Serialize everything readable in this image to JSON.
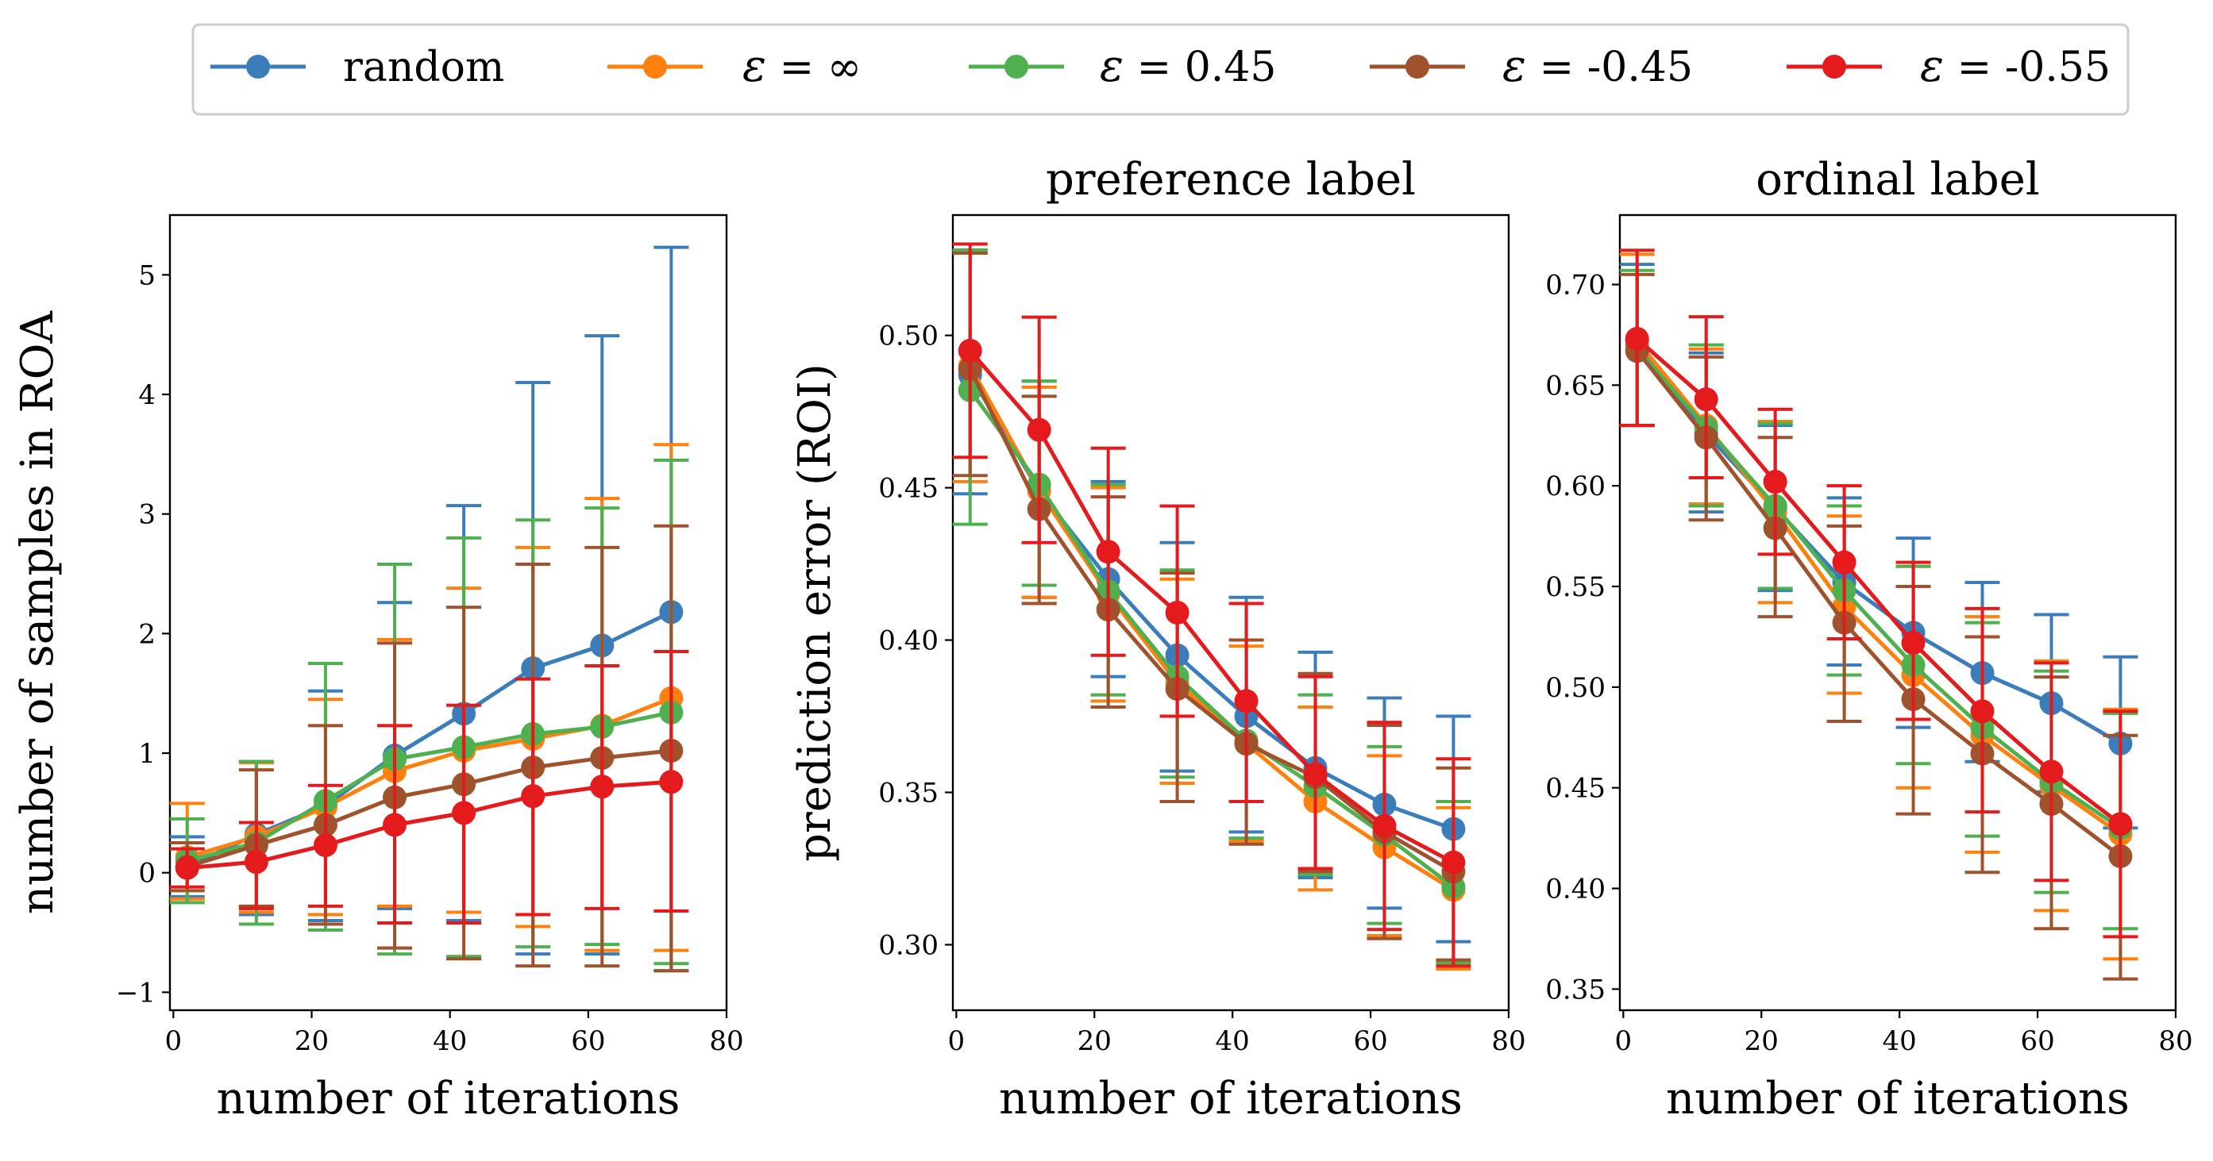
{
  "legend": {
    "location": "top-center",
    "entries": [
      {
        "series": "random",
        "prefix": "",
        "label": "random"
      },
      {
        "series": "eps_inf",
        "prefix": "ε",
        "label": " = ∞"
      },
      {
        "series": "eps_045",
        "prefix": "ε",
        "label": " = 0.45"
      },
      {
        "series": "eps_m045",
        "prefix": "ε",
        "label": " = -0.45"
      },
      {
        "series": "eps_m055",
        "prefix": "ε",
        "label": " = -0.55"
      }
    ]
  },
  "colors": {
    "random": "#3b7dbb",
    "eps_inf": "#ff800e",
    "eps_045": "#4fb04f",
    "eps_m045": "#a0522d",
    "eps_m055": "#e41a1c"
  },
  "chart_data": [
    {
      "type": "line",
      "title": "",
      "xlabel": "number of iterations",
      "ylabel": "number of samples in ROA",
      "xlim": [
        -0.5,
        80
      ],
      "ylim": [
        -1.15,
        5.5
      ],
      "xticks": [
        0,
        20,
        40,
        60,
        80
      ],
      "yticks": [
        -1,
        0,
        1,
        2,
        3,
        4,
        5
      ],
      "ytick_labels": [
        "−1",
        "0",
        "1",
        "2",
        "3",
        "4",
        "5"
      ],
      "grid": false,
      "x": [
        2,
        12,
        22,
        32,
        42,
        52,
        62,
        72
      ],
      "series": [
        {
          "key": "random",
          "name": "random",
          "values": [
            0.05,
            0.32,
            0.56,
            0.98,
            1.33,
            1.71,
            1.9,
            2.18
          ],
          "yerr_low": [
            -0.2,
            -0.35,
            -0.4,
            -0.3,
            -0.4,
            -0.68,
            -0.68,
            -0.82
          ],
          "yerr_high": [
            0.3,
            0.93,
            1.52,
            2.26,
            3.07,
            4.1,
            4.49,
            5.23
          ]
        },
        {
          "key": "eps_inf",
          "name": "ε = ∞",
          "values": [
            0.13,
            0.3,
            0.55,
            0.85,
            1.02,
            1.12,
            1.23,
            1.46
          ],
          "yerr_low": [
            -0.22,
            -0.33,
            -0.35,
            -0.28,
            -0.33,
            -0.45,
            -0.65,
            -0.65
          ],
          "yerr_high": [
            0.58,
            0.92,
            1.45,
            1.95,
            2.38,
            2.72,
            3.13,
            3.58
          ]
        },
        {
          "key": "eps_045",
          "name": "ε = 0.45",
          "values": [
            0.1,
            0.25,
            0.6,
            0.95,
            1.05,
            1.16,
            1.22,
            1.34
          ],
          "yerr_low": [
            -0.25,
            -0.43,
            -0.48,
            -0.68,
            -0.7,
            -0.62,
            -0.6,
            -0.76
          ],
          "yerr_high": [
            0.45,
            0.93,
            1.75,
            2.58,
            2.8,
            2.95,
            3.05,
            3.45
          ]
        },
        {
          "key": "eps_m045",
          "name": "ε = -0.45",
          "values": [
            0.05,
            0.23,
            0.4,
            0.63,
            0.74,
            0.88,
            0.96,
            1.02
          ],
          "yerr_low": [
            -0.15,
            -0.28,
            -0.43,
            -0.63,
            -0.72,
            -0.78,
            -0.78,
            -0.82
          ],
          "yerr_high": [
            0.25,
            0.86,
            1.23,
            1.92,
            2.22,
            2.58,
            2.72,
            2.9
          ]
        },
        {
          "key": "eps_m055",
          "name": "ε = -0.55",
          "values": [
            0.04,
            0.09,
            0.23,
            0.4,
            0.5,
            0.64,
            0.72,
            0.76
          ],
          "yerr_low": [
            -0.12,
            -0.3,
            -0.28,
            -0.42,
            -0.42,
            -0.35,
            -0.3,
            -0.32
          ],
          "yerr_high": [
            0.2,
            0.42,
            0.73,
            1.23,
            1.4,
            1.62,
            1.73,
            1.85
          ]
        }
      ]
    },
    {
      "type": "line",
      "title": "preference label",
      "xlabel": "number of iterations",
      "ylabel": "prediction error (ROI)",
      "xlim": [
        -0.5,
        80
      ],
      "ylim": [
        0.2785,
        0.5395
      ],
      "xticks": [
        0,
        20,
        40,
        60,
        80
      ],
      "yticks": [
        0.3,
        0.35,
        0.4,
        0.45,
        0.5
      ],
      "ytick_labels": [
        "0.30",
        "0.35",
        "0.40",
        "0.45",
        "0.50"
      ],
      "grid": false,
      "x": [
        2,
        12,
        22,
        32,
        42,
        52,
        62,
        72
      ],
      "series": [
        {
          "key": "random",
          "name": "random",
          "values": [
            0.487,
            0.449,
            0.42,
            0.395,
            0.375,
            0.358,
            0.346,
            0.338
          ],
          "yerr_low": [
            0.448,
            0.414,
            0.388,
            0.357,
            0.337,
            0.322,
            0.312,
            0.301
          ],
          "yerr_high": [
            0.527,
            0.485,
            0.452,
            0.432,
            0.414,
            0.396,
            0.381,
            0.375
          ]
        },
        {
          "key": "eps_inf",
          "name": "ε = ∞",
          "values": [
            0.49,
            0.449,
            0.415,
            0.386,
            0.366,
            0.347,
            0.332,
            0.318
          ],
          "yerr_low": [
            0.452,
            0.414,
            0.38,
            0.353,
            0.334,
            0.318,
            0.303,
            0.292
          ],
          "yerr_high": [
            0.528,
            0.483,
            0.45,
            0.42,
            0.398,
            0.378,
            0.362,
            0.345
          ]
        },
        {
          "key": "eps_045",
          "name": "ε = 0.45",
          "values": [
            0.482,
            0.451,
            0.416,
            0.388,
            0.367,
            0.352,
            0.336,
            0.319
          ],
          "yerr_low": [
            0.438,
            0.418,
            0.382,
            0.355,
            0.335,
            0.323,
            0.307,
            0.294
          ],
          "yerr_high": [
            0.528,
            0.485,
            0.451,
            0.423,
            0.4,
            0.382,
            0.365,
            0.347
          ]
        },
        {
          "key": "eps_m045",
          "name": "ε = -0.45",
          "values": [
            0.489,
            0.443,
            0.41,
            0.384,
            0.366,
            0.355,
            0.337,
            0.324
          ],
          "yerr_low": [
            0.454,
            0.412,
            0.378,
            0.347,
            0.333,
            0.324,
            0.302,
            0.295
          ],
          "yerr_high": [
            0.527,
            0.48,
            0.447,
            0.422,
            0.4,
            0.389,
            0.372,
            0.358
          ]
        },
        {
          "key": "eps_m055",
          "name": "ε = -0.55",
          "values": [
            0.495,
            0.469,
            0.429,
            0.409,
            0.38,
            0.356,
            0.339,
            0.327
          ],
          "yerr_low": [
            0.46,
            0.432,
            0.395,
            0.375,
            0.347,
            0.325,
            0.305,
            0.293
          ],
          "yerr_high": [
            0.53,
            0.506,
            0.463,
            0.444,
            0.412,
            0.388,
            0.373,
            0.361
          ]
        }
      ]
    },
    {
      "type": "line",
      "title": "ordinal label",
      "xlabel": "number of iterations",
      "ylabel": "",
      "xlim": [
        -0.5,
        80
      ],
      "ylim": [
        0.3395,
        0.7345
      ],
      "xticks": [
        0,
        20,
        40,
        60,
        80
      ],
      "yticks": [
        0.35,
        0.4,
        0.45,
        0.5,
        0.55,
        0.6,
        0.65,
        0.7
      ],
      "ytick_labels": [
        "0.35",
        "0.40",
        "0.45",
        "0.50",
        "0.55",
        "0.60",
        "0.65",
        "0.70"
      ],
      "grid": false,
      "x": [
        2,
        12,
        22,
        32,
        42,
        52,
        62,
        72
      ],
      "series": [
        {
          "key": "random",
          "name": "random",
          "values": [
            0.67,
            0.626,
            0.589,
            0.552,
            0.527,
            0.507,
            0.492,
            0.472
          ],
          "yerr_low": [
            0.63,
            0.587,
            0.548,
            0.511,
            0.48,
            0.463,
            0.448,
            0.43
          ],
          "yerr_high": [
            0.71,
            0.666,
            0.63,
            0.594,
            0.574,
            0.552,
            0.536,
            0.515
          ]
        },
        {
          "key": "eps_inf",
          "name": "ε = ∞",
          "values": [
            0.672,
            0.63,
            0.587,
            0.54,
            0.506,
            0.476,
            0.451,
            0.427
          ],
          "yerr_low": [
            0.63,
            0.591,
            0.542,
            0.497,
            0.45,
            0.418,
            0.389,
            0.365
          ],
          "yerr_high": [
            0.715,
            0.668,
            0.632,
            0.585,
            0.56,
            0.535,
            0.513,
            0.489
          ]
        },
        {
          "key": "eps_045",
          "name": "ε = 0.45",
          "values": [
            0.668,
            0.629,
            0.59,
            0.548,
            0.511,
            0.48,
            0.453,
            0.43
          ],
          "yerr_low": [
            0.63,
            0.59,
            0.549,
            0.506,
            0.462,
            0.426,
            0.398,
            0.38
          ],
          "yerr_high": [
            0.707,
            0.67,
            0.631,
            0.59,
            0.56,
            0.532,
            0.508,
            0.487
          ]
        },
        {
          "key": "eps_m045",
          "name": "ε = -0.45",
          "values": [
            0.667,
            0.624,
            0.579,
            0.532,
            0.494,
            0.467,
            0.442,
            0.416
          ],
          "yerr_low": [
            0.63,
            0.583,
            0.535,
            0.483,
            0.437,
            0.408,
            0.38,
            0.355
          ],
          "yerr_high": [
            0.705,
            0.664,
            0.624,
            0.58,
            0.55,
            0.525,
            0.505,
            0.476
          ]
        },
        {
          "key": "eps_m055",
          "name": "ε = -0.55",
          "values": [
            0.673,
            0.643,
            0.602,
            0.562,
            0.522,
            0.488,
            0.458,
            0.432
          ],
          "yerr_low": [
            0.63,
            0.604,
            0.566,
            0.524,
            0.484,
            0.438,
            0.404,
            0.376
          ],
          "yerr_high": [
            0.717,
            0.684,
            0.638,
            0.6,
            0.562,
            0.539,
            0.512,
            0.488
          ]
        }
      ]
    }
  ]
}
